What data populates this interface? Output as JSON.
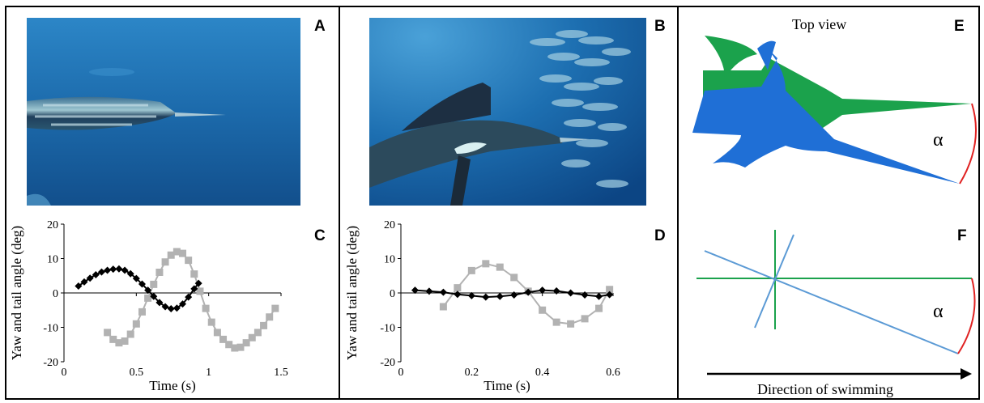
{
  "panels": {
    "A": "A",
    "B": "B",
    "C": "C",
    "D": "D",
    "E": "E",
    "F": "F"
  },
  "panel_e": {
    "title": "Top view",
    "angle_symbol": "α"
  },
  "panel_f": {
    "angle_symbol": "α",
    "arrow_label": "Direction of swimming"
  },
  "colors": {
    "yaw_series": "#000000",
    "tail_series": "#b2b2b2",
    "fish_blue": "#1f6fd6",
    "fish_green": "#1ba24c",
    "angle_arc": "#e02222",
    "water_dark": "#0d3f7a",
    "water_light": "#2f87c6"
  },
  "chart_data": [
    {
      "type": "line",
      "panel": "C",
      "ylabel": "Yaw and tail  angle  (deg)",
      "xlabel": "Time (s)",
      "xlim": [
        0,
        1.5
      ],
      "ylim": [
        -20,
        20
      ],
      "xticks": [
        "0",
        "0.5",
        "1",
        "1.5"
      ],
      "yticks": [
        "20",
        "10",
        "0",
        "-10",
        "-20"
      ],
      "grid": false,
      "series": [
        {
          "color": "#000000",
          "marker": "diamond",
          "x": [
            0.1,
            0.14,
            0.18,
            0.22,
            0.26,
            0.3,
            0.34,
            0.38,
            0.42,
            0.46,
            0.5,
            0.54,
            0.58,
            0.62,
            0.66,
            0.7,
            0.74,
            0.78,
            0.82,
            0.86,
            0.9,
            0.93
          ],
          "y": [
            2.0,
            3.2,
            4.3,
            5.3,
            6.1,
            6.6,
            6.9,
            7.0,
            6.6,
            5.6,
            4.2,
            2.6,
            0.8,
            -1.0,
            -2.8,
            -4.0,
            -4.6,
            -4.4,
            -3.2,
            -1.2,
            1.2,
            2.8
          ]
        },
        {
          "color": "#b2b2b2",
          "marker": "square",
          "x": [
            0.3,
            0.34,
            0.38,
            0.42,
            0.46,
            0.5,
            0.54,
            0.58,
            0.62,
            0.66,
            0.7,
            0.74,
            0.78,
            0.82,
            0.86,
            0.9,
            0.94,
            0.98,
            1.02,
            1.06,
            1.1,
            1.14,
            1.18,
            1.22,
            1.26,
            1.3,
            1.34,
            1.38,
            1.42,
            1.46
          ],
          "y": [
            -11.5,
            -13.5,
            -14.5,
            -14.0,
            -12.0,
            -9.0,
            -5.5,
            -1.5,
            2.5,
            6.0,
            9.0,
            11.0,
            12.0,
            11.5,
            9.5,
            5.5,
            0.5,
            -4.5,
            -8.5,
            -11.5,
            -13.5,
            -15.0,
            -16.0,
            -15.8,
            -14.5,
            -13.0,
            -11.5,
            -9.5,
            -7.0,
            -4.5
          ]
        }
      ]
    },
    {
      "type": "line",
      "panel": "D",
      "ylabel": "Yaw and tail angle (deg)",
      "xlabel": "Time (s)",
      "xlim": [
        0,
        0.6
      ],
      "ylim": [
        -20,
        20
      ],
      "xticks": [
        "0",
        "0.2",
        "0.4",
        "0.6"
      ],
      "yticks": [
        "20",
        "10",
        "0",
        "-10",
        "-20"
      ],
      "grid": false,
      "series": [
        {
          "color": "#000000",
          "marker": "diamond",
          "x": [
            0.04,
            0.08,
            0.12,
            0.16,
            0.2,
            0.24,
            0.28,
            0.32,
            0.36,
            0.4,
            0.44,
            0.48,
            0.52,
            0.56,
            0.59
          ],
          "y": [
            0.8,
            0.5,
            0.2,
            -0.4,
            -0.8,
            -1.2,
            -1.0,
            -0.6,
            0.2,
            0.8,
            0.6,
            0.0,
            -0.6,
            -1.0,
            -0.5
          ]
        },
        {
          "color": "#b2b2b2",
          "marker": "square",
          "x": [
            0.12,
            0.16,
            0.2,
            0.24,
            0.28,
            0.32,
            0.36,
            0.4,
            0.44,
            0.48,
            0.52,
            0.56,
            0.59
          ],
          "y": [
            -4.0,
            1.5,
            6.5,
            8.5,
            7.5,
            4.5,
            0.5,
            -5.0,
            -8.5,
            -9.0,
            -7.5,
            -4.5,
            1.0
          ]
        }
      ]
    }
  ]
}
